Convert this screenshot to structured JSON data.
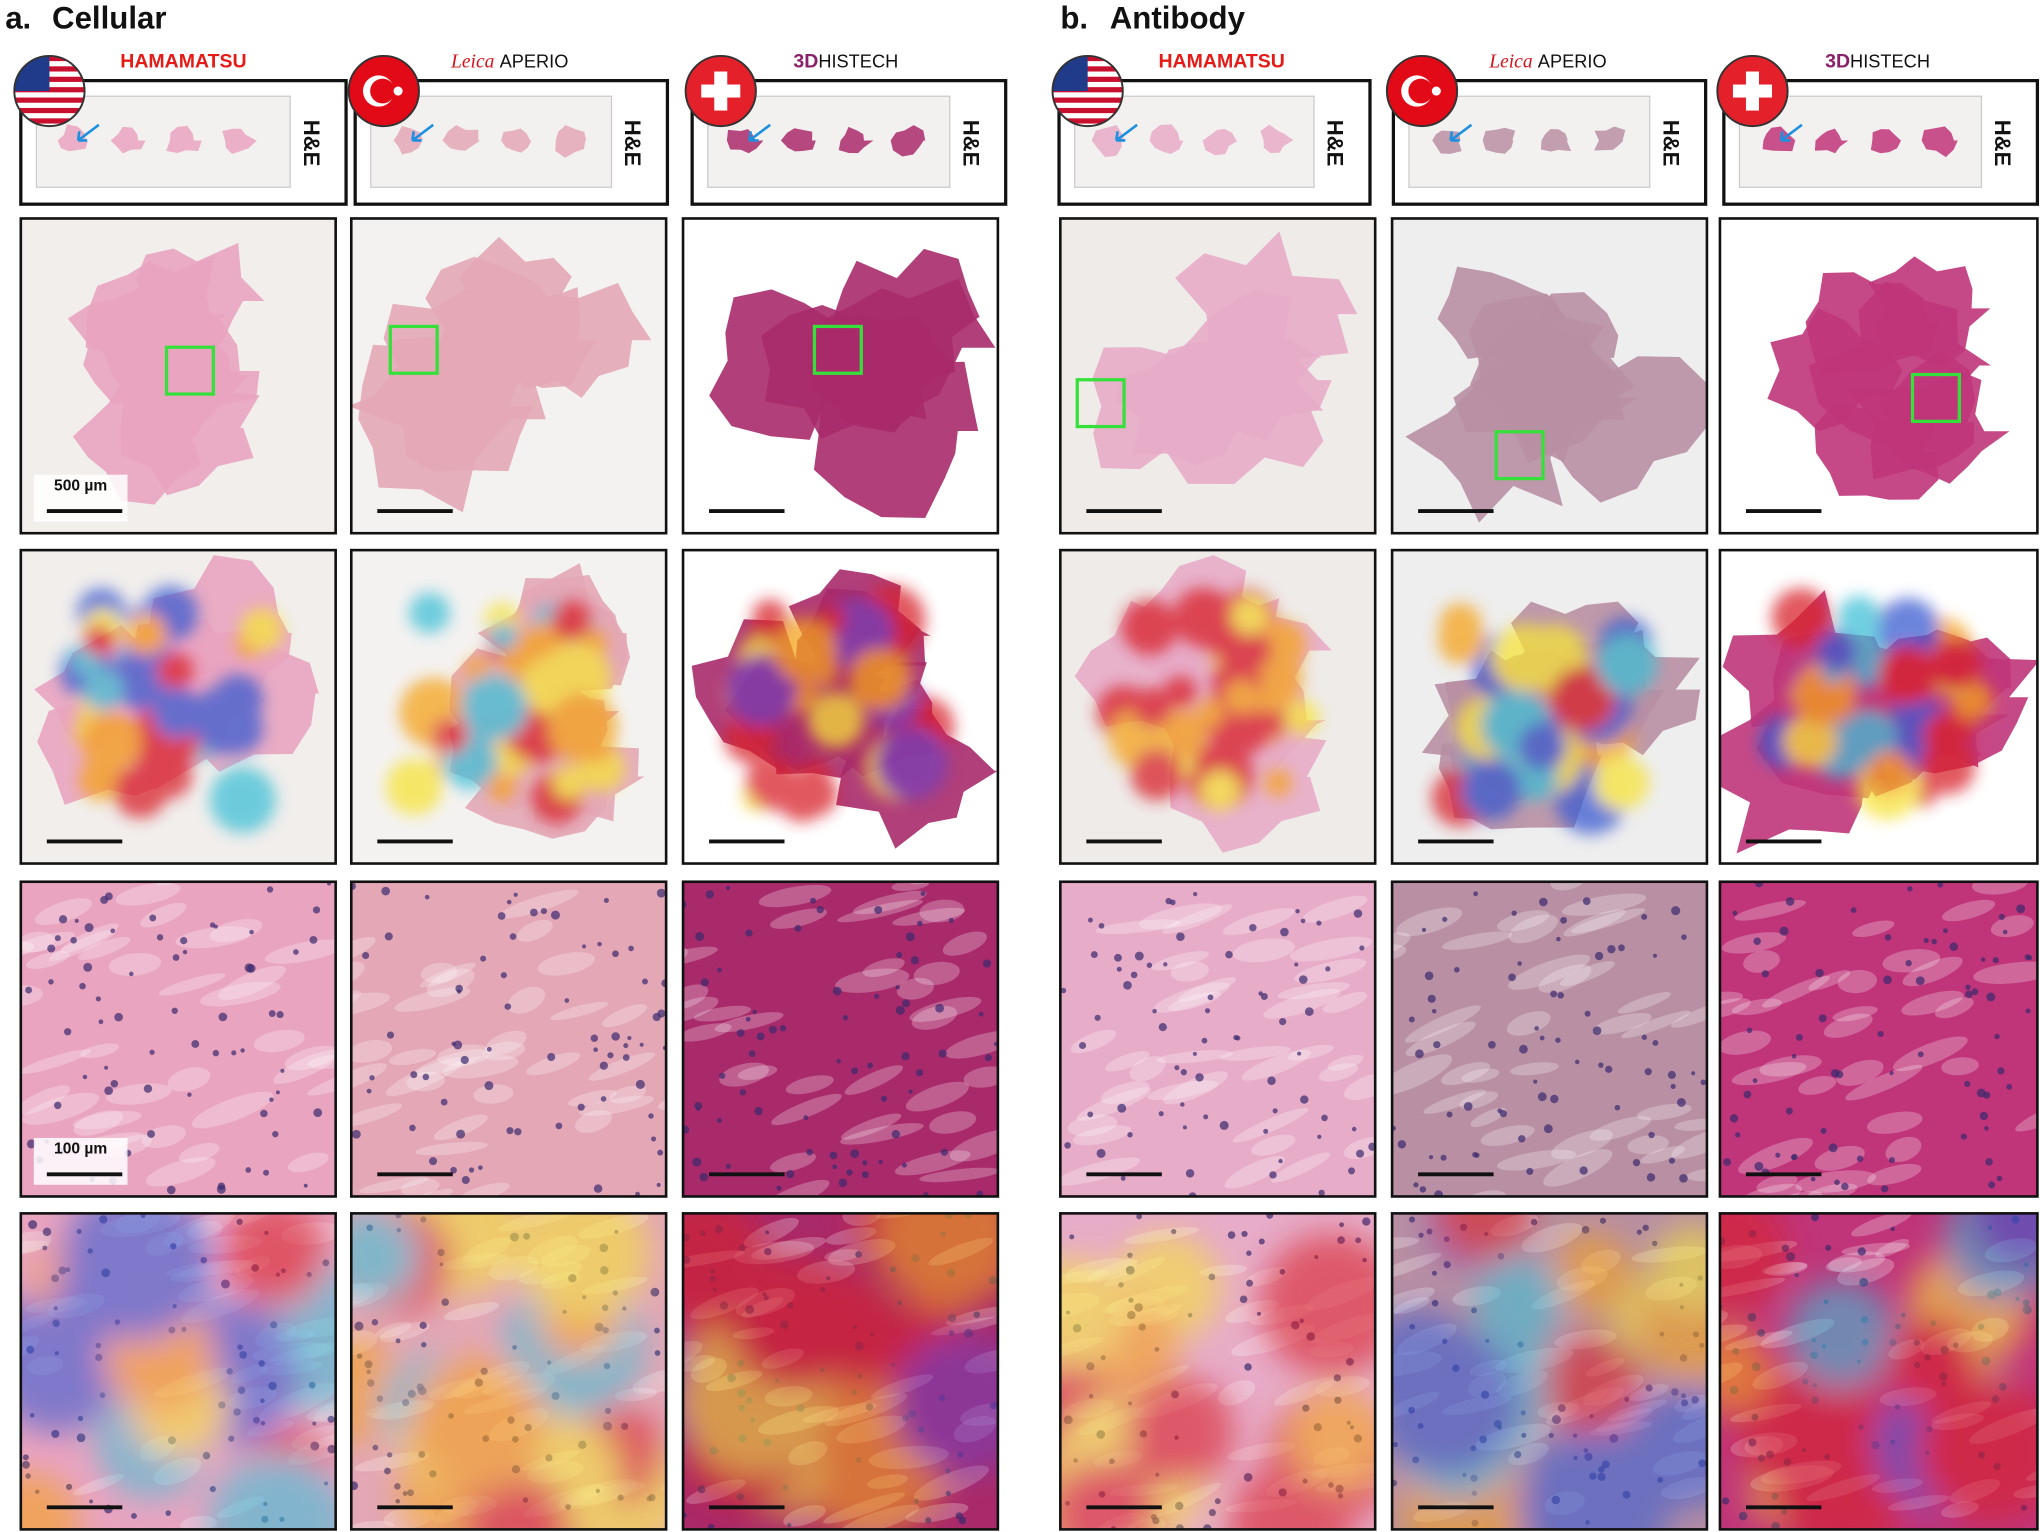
{
  "panels": [
    {
      "label": "a.",
      "title": "Cellular",
      "stain": "H&E",
      "scanners": [
        {
          "brand": "HAMAMATSU"
        },
        {
          "brand": "Leica",
          "model": "APERIO"
        },
        {
          "brand": "3D",
          "model": "HISTECH"
        }
      ]
    },
    {
      "label": "b.",
      "title": "Antibody",
      "stain": "H&E",
      "scanners": [
        {
          "brand": "HAMAMATSU"
        },
        {
          "brand": "Leica",
          "model": "APERIO"
        },
        {
          "brand": "3D",
          "model": "HISTECH"
        }
      ]
    }
  ],
  "scale_bars": {
    "overview": "500 µm",
    "detail": "100 µm"
  }
}
